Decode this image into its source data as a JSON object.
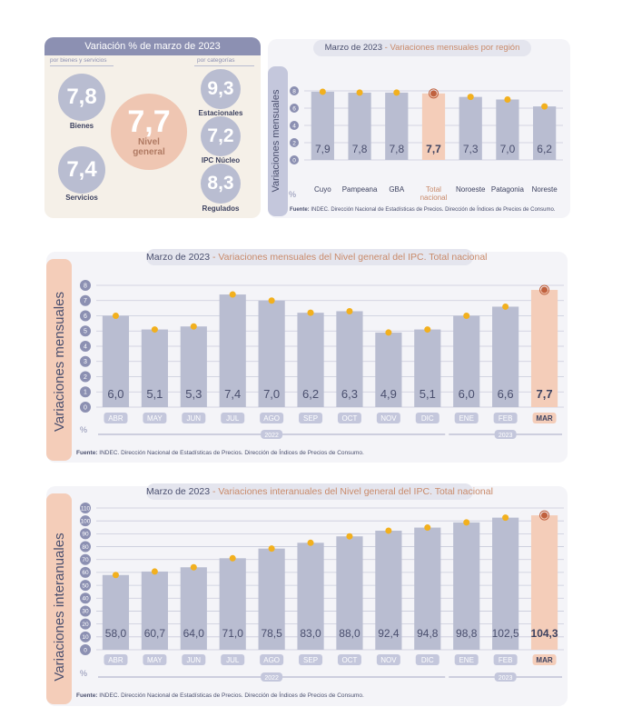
{
  "summary": {
    "title": "Variación % de marzo de 2023",
    "left_caption": "por bienes y servicios",
    "right_caption": "por categorías",
    "bienes": {
      "value": "7,8",
      "label": "Bienes"
    },
    "servicios": {
      "value": "7,4",
      "label": "Servicios"
    },
    "nivel": {
      "value": "7,7",
      "label_line1": "Nivel",
      "label_line2": "general"
    },
    "estacionales": {
      "value": "9,3",
      "label": "Estacionales"
    },
    "nucleo": {
      "value": "7,2",
      "label": "IPC Núcleo"
    },
    "regulados": {
      "value": "8,3",
      "label": "Regulados"
    },
    "colors": {
      "circle": "#b9bdd1",
      "highlight": "#efc6b2",
      "header": "#8c90b2"
    }
  },
  "source": {
    "prefix": "Fuente:",
    "text": "INDEC. Dirección Nacional de Estadísticas de Precios. Dirección de Índices de Precios de Consumo."
  },
  "source_dot": {
    "prefix": "Fuente:",
    "text": "INDEC. Dirección Nacional de Estadísticas de Precios. Dirección de Índices de Precios de Consumo."
  },
  "chart_data": [
    {
      "type": "bar",
      "title_date": "Marzo de 2023",
      "title_rest": " - Variaciones mensuales por región",
      "ylabel": "Variaciones mensuales",
      "unit": "%",
      "categories": [
        "Cuyo",
        "Pampeana",
        "GBA",
        "Total\nnacional",
        "Noroeste",
        "Patagonia",
        "Noreste"
      ],
      "values": [
        7.9,
        7.8,
        7.8,
        7.7,
        7.3,
        7.0,
        6.2
      ],
      "value_labels": [
        "7,9",
        "7,8",
        "7,8",
        "7,7",
        "7,3",
        "7,0",
        "6,2"
      ],
      "highlight_index": 3,
      "ylim": [
        0,
        8
      ],
      "yticks": [
        0,
        2,
        4,
        6,
        8
      ],
      "colors": {
        "bar": "#b9bdd1",
        "highlight": "#f4cdb9",
        "marker": "#f2b01e",
        "highlight_marker": "#c0613e"
      }
    },
    {
      "type": "bar",
      "title_date": "Marzo de 2023",
      "title_rest": " - Variaciones mensuales del Nivel general del IPC. Total nacional",
      "ylabel": "Variaciones mensuales",
      "unit": "%",
      "categories": [
        "ABR",
        "MAY",
        "JUN",
        "JUL",
        "AGO",
        "SEP",
        "OCT",
        "NOV",
        "DIC",
        "ENE",
        "FEB",
        "MAR"
      ],
      "values": [
        6.0,
        5.1,
        5.3,
        7.4,
        7.0,
        6.2,
        6.3,
        4.9,
        5.1,
        6.0,
        6.6,
        7.7
      ],
      "value_labels": [
        "6,0",
        "5,1",
        "5,3",
        "7,4",
        "7,0",
        "6,2",
        "6,3",
        "4,9",
        "5,1",
        "6,0",
        "6,6",
        "7,7"
      ],
      "highlight_index": 11,
      "ylim": [
        0,
        8
      ],
      "yticks": [
        0,
        1,
        2,
        3,
        4,
        5,
        6,
        7,
        8
      ],
      "years": [
        {
          "label": "2022",
          "from": 0,
          "to": 8
        },
        {
          "label": "2023",
          "from": 9,
          "to": 11
        }
      ],
      "colors": {
        "bar": "#b9bdd1",
        "highlight": "#f4cdb9",
        "marker": "#f2b01e",
        "highlight_marker": "#c0613e"
      }
    },
    {
      "type": "bar",
      "title_date": "Marzo de 2023",
      "title_rest": " - Variaciones interanuales del Nivel general del IPC. Total nacional",
      "ylabel": "Variaciones interanuales",
      "unit": "%",
      "categories": [
        "ABR",
        "MAY",
        "JUN",
        "JUL",
        "AGO",
        "SEP",
        "OCT",
        "NOV",
        "DIC",
        "ENE",
        "FEB",
        "MAR"
      ],
      "values": [
        58.0,
        60.7,
        64.0,
        71.0,
        78.5,
        83.0,
        88.0,
        92.4,
        94.8,
        98.8,
        102.5,
        104.3
      ],
      "value_labels": [
        "58,0",
        "60,7",
        "64,0",
        "71,0",
        "78,5",
        "83,0",
        "88,0",
        "92,4",
        "94,8",
        "98,8",
        "102,5",
        "104,3"
      ],
      "highlight_index": 11,
      "ylim": [
        0,
        110
      ],
      "yticks": [
        0,
        10,
        20,
        30,
        40,
        50,
        60,
        70,
        80,
        90,
        100,
        110
      ],
      "years": [
        {
          "label": "2022",
          "from": 0,
          "to": 8
        },
        {
          "label": "2023",
          "from": 9,
          "to": 11
        }
      ],
      "colors": {
        "bar": "#b9bdd1",
        "highlight": "#f4cdb9",
        "marker": "#f2b01e",
        "highlight_marker": "#c0613e"
      }
    }
  ]
}
